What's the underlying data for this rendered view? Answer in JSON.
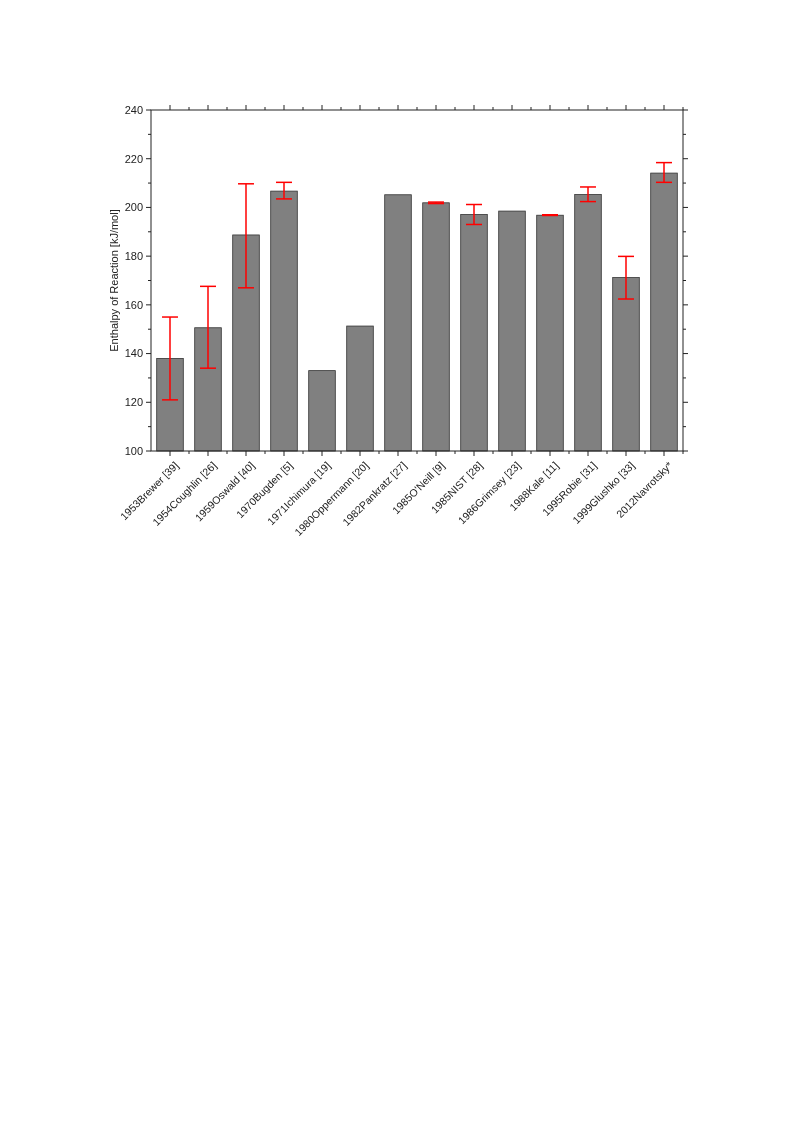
{
  "chart_data": {
    "type": "bar",
    "ylabel": "Enthalpy of Reaction [kJ/mol]",
    "categories": [
      "1953Brewer [39]",
      "1954Coughlin [26]",
      "1959Oswald [40]",
      "1970Bugden [5]",
      "1971Ichimura [19]",
      "1980Oppermann [20]",
      "1982Pankratz [27]",
      "1985O'Neill [9]",
      "1985NIST [28]",
      "1986Grimsey [23]",
      "1988Kale [11]",
      "1995Robie [31]",
      "1999Glushko [33]",
      "2012Navrotsky*"
    ],
    "values": [
      138,
      150.6,
      188.7,
      206.7,
      133,
      151.3,
      205.2,
      201.9,
      197.1,
      198.5,
      196.8,
      205.3,
      171.2,
      214.1
    ],
    "errors": [
      [
        121,
        155
      ],
      [
        134,
        167.6
      ],
      [
        167,
        209.7
      ],
      [
        203.5,
        210.3
      ],
      null,
      null,
      null,
      [
        201.6,
        202.2
      ],
      [
        193,
        201.2
      ],
      null,
      [
        196.7,
        197
      ],
      [
        202.4,
        208.4
      ],
      [
        162.4,
        179.9
      ],
      [
        210.3,
        218.4
      ]
    ],
    "color": "#808080",
    "ylim": [
      100,
      240
    ],
    "yticks": [
      100,
      120,
      140,
      160,
      180,
      200,
      220,
      240
    ],
    "grid": false
  }
}
